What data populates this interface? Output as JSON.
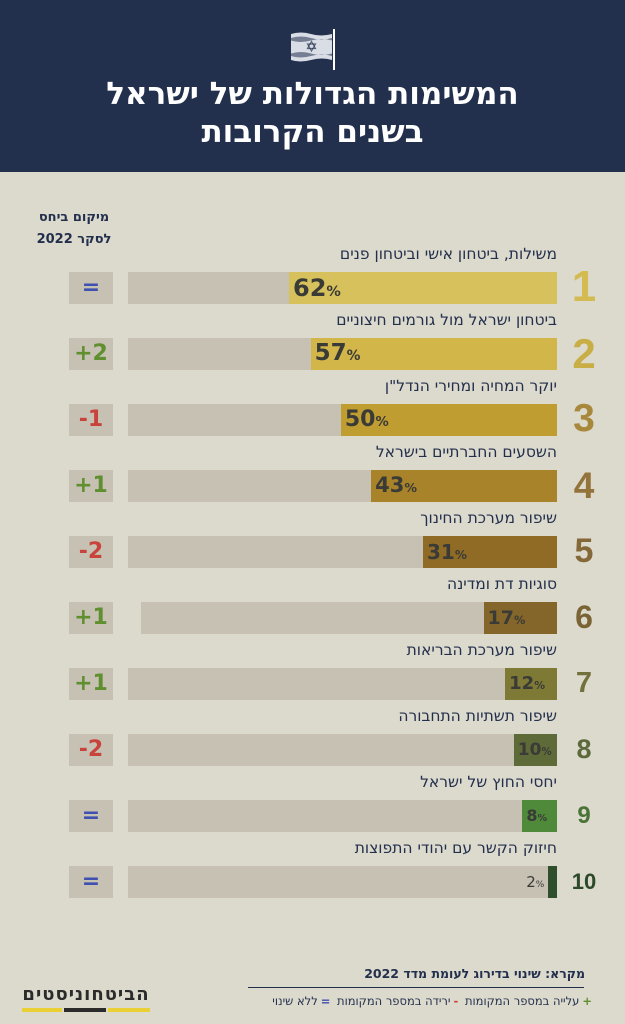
{
  "header": {
    "title_line1": "המשימות הגדולות של ישראל",
    "title_line2": "בשנים הקרובות",
    "bg_color": "#23304d",
    "icon": "israel-flag-icon"
  },
  "change_column": {
    "label_line1": "מיקום ביחס",
    "label_line2": "לסקר 2022"
  },
  "chart_data": {
    "type": "bar",
    "orientation": "horizontal",
    "xlim": [
      0,
      62
    ],
    "categories": [
      "משילות, ביטחון אישי וביטחון פנים",
      "ביטחון ישראל מול גורמים חיצוניים",
      "יוקר המחיה ומחירי הנדל\"ן",
      "השסעים החברתיים בישראל",
      "שיפור מערכת החינוך",
      "סוגיות דת ומדינה",
      "שיפור מערכת הבריאות",
      "שיפור תשתיות התחבורה",
      "יחסי החוץ של ישראל",
      "חיזוק הקשר עם יהודי התפוצות"
    ],
    "values": [
      62,
      57,
      50,
      43,
      31,
      17,
      12,
      10,
      8,
      2
    ],
    "value_suffix": "%",
    "ranks": [
      "1",
      "2",
      "3",
      "4",
      "5",
      "6",
      "7",
      "8",
      "9",
      "10"
    ],
    "rank_changes": [
      "=",
      "+2",
      "-1",
      "+1",
      "-2",
      "+1",
      "+1",
      "-2",
      "=",
      "="
    ],
    "bar_colors": [
      "#d7c15c",
      "#d2b64a",
      "#bf9d31",
      "#a88329",
      "#8f6b26",
      "#85662a",
      "#7e7a36",
      "#5e6b39",
      "#4f8a3a",
      "#2f4e2b"
    ],
    "rank_colors": [
      "#d4bb51",
      "#c9ad45",
      "#a8883a",
      "#94733a",
      "#846838",
      "#7a6436",
      "#72703c",
      "#5c6a3b",
      "#4a7436",
      "#2c4a2a"
    ],
    "change_colors": {
      "=": "#3f50b0",
      "+": "#5f8f2e",
      "-": "#c8433b"
    }
  },
  "legend": {
    "title": "מקרא: שינוי בדירוג לעומת מדד 2022",
    "items": [
      {
        "symbol": "+",
        "text": "עלייה במספר המקומות",
        "color": "#5f8f2e"
      },
      {
        "symbol": "-",
        "text": "ירידה במספר המקומות",
        "color": "#c8433b"
      },
      {
        "symbol": "=",
        "text": "ללא שינוי",
        "color": "#3f50b0"
      }
    ]
  },
  "logo": {
    "text": "הביטחוניסטים",
    "stripe_colors": [
      "#ead034",
      "#2b2b2b",
      "#ead034"
    ]
  }
}
